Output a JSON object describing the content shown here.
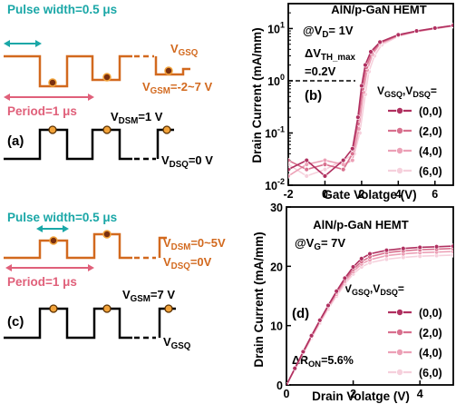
{
  "colors": {
    "teal": "#1aa7a7",
    "orange": "#d2691e",
    "pink_label": "#e0607a",
    "black": "#000000",
    "dot_fill": "#f2a33a",
    "series": [
      "#b03060",
      "#d8708e",
      "#eca0b6",
      "#f6d0dc"
    ]
  },
  "panel_a": {
    "pulse_width": "Pulse width=0.5 μs",
    "vgsq": "V<sub>GSQ</sub>",
    "vgsm": "V<sub>GSM</sub>=-2~7 V",
    "period": "Period=1 μs",
    "vdsm": "V<sub>DSM</sub>=1 V",
    "vdsq": "V<sub>DSQ</sub>=0 V",
    "label": "(a)"
  },
  "panel_c": {
    "pulse_width": "Pulse width=0.5 μs",
    "vdsm": "V<sub>DSM</sub>=0~5V",
    "vdsq": "V<sub>DSQ</sub>=0V",
    "period": "Period=1 μs",
    "vgsm": "V<sub>GSM</sub>=7 V",
    "vgsq": "V<sub>GSQ</sub>",
    "label": "(c)"
  },
  "chart_data": [
    {
      "type": "line",
      "panel": "(b)",
      "device": "AlN/p-GaN HEMT",
      "condition": "@V<sub>D</sub>= 1V",
      "annotation_1": "ΔV<sub>TH_max</sub>",
      "annotation_2": "=0.2V",
      "xlabel": "Gate Volatge (V)",
      "ylabel": "Drain Current (mA/mm)",
      "y_scale": "log",
      "xlim": [
        -2,
        7
      ],
      "ylim": [
        0.01,
        30
      ],
      "xticks": [
        "-2",
        "0",
        "2",
        "4",
        "6"
      ],
      "yticks": [
        "10<tspan dy='-6' font-size='9'>-2</tspan>",
        "10<tspan dy='-6' font-size='9'>-1</tspan>",
        "10<tspan dy='-6' font-size='9'>0</tspan>",
        "10<tspan dy='-6' font-size='9'>1</tspan>"
      ],
      "legend_title": "V<sub>GSQ</sub>,V<sub>DSQ</sub>=",
      "legend_placement": "right",
      "reference_line_y": 1,
      "series": [
        {
          "name": "(0,0)",
          "x": [
            -2,
            -1,
            0,
            1,
            1.5,
            1.8,
            2.0,
            2.2,
            2.5,
            3,
            4,
            5,
            6,
            7
          ],
          "y": [
            0.02,
            0.03,
            0.015,
            0.03,
            0.05,
            0.2,
            0.8,
            2.0,
            3.6,
            5.5,
            7.6,
            9.0,
            10.2,
            11.5
          ]
        },
        {
          "name": "(2,0)",
          "x": [
            -2,
            -1,
            0,
            1,
            1.5,
            1.8,
            2.05,
            2.25,
            2.55,
            3,
            4,
            5,
            6,
            7
          ],
          "y": [
            0.03,
            0.02,
            0.025,
            0.02,
            0.04,
            0.15,
            0.7,
            1.8,
            3.4,
            5.3,
            7.4,
            8.9,
            10.1,
            11.4
          ]
        },
        {
          "name": "(4,0)",
          "x": [
            -2,
            -1,
            0,
            1,
            1.5,
            1.85,
            2.1,
            2.3,
            2.6,
            3,
            4,
            5,
            6,
            7
          ],
          "y": [
            0.015,
            0.025,
            0.03,
            0.025,
            0.03,
            0.12,
            0.6,
            1.6,
            3.2,
            5.1,
            7.3,
            8.8,
            10.0,
            11.3
          ]
        },
        {
          "name": "(6,0)",
          "x": [
            -2,
            -1,
            0,
            1,
            1.6,
            1.9,
            2.2,
            2.4,
            2.7,
            3.1,
            4,
            5,
            6,
            7
          ],
          "y": [
            0.025,
            0.015,
            0.02,
            0.03,
            0.04,
            0.1,
            0.55,
            1.5,
            3.0,
            4.9,
            7.1,
            8.7,
            9.9,
            11.2
          ]
        }
      ]
    },
    {
      "type": "line",
      "panel": "(d)",
      "device": "AlN/p-GaN HEMT",
      "condition": "@V<sub>G</sub>= 7V",
      "annotation": "ΔR<sub>ON</sub>=5.6%",
      "xlabel": "Drain Volatge (V)",
      "ylabel": "Drain Current (mA/mm)",
      "xlim": [
        0,
        5
      ],
      "ylim": [
        0,
        30
      ],
      "xticks": [
        "0",
        "2",
        "4"
      ],
      "yticks": [
        "0",
        "10",
        "20",
        "30"
      ],
      "legend_title": "V<sub>GSQ</sub>,V<sub>DSQ</sub>=",
      "legend_placement": "bottom-right",
      "series": [
        {
          "name": "(0,0)",
          "x": [
            0,
            0.25,
            0.5,
            0.75,
            1.0,
            1.25,
            1.5,
            1.75,
            2.0,
            2.25,
            2.5,
            3.0,
            3.5,
            4.0,
            4.5,
            5.0
          ],
          "y": [
            0,
            2.8,
            5.6,
            8.3,
            10.9,
            13.4,
            15.8,
            18.0,
            19.9,
            21.3,
            22.1,
            22.7,
            23.0,
            23.2,
            23.3,
            23.4
          ]
        },
        {
          "name": "(2,0)",
          "x": [
            0,
            0.25,
            0.5,
            0.75,
            1.0,
            1.25,
            1.5,
            1.75,
            2.0,
            2.25,
            2.5,
            3.0,
            3.5,
            4.0,
            4.5,
            5.0
          ],
          "y": [
            0,
            2.7,
            5.5,
            8.2,
            10.8,
            13.3,
            15.6,
            17.7,
            19.5,
            20.8,
            21.6,
            22.3,
            22.6,
            22.8,
            22.9,
            23.0
          ]
        },
        {
          "name": "(4,0)",
          "x": [
            0,
            0.25,
            0.5,
            0.75,
            1.0,
            1.25,
            1.5,
            1.75,
            2.0,
            2.25,
            2.5,
            3.0,
            3.5,
            4.0,
            4.5,
            5.0
          ],
          "y": [
            0,
            2.7,
            5.4,
            8.1,
            10.6,
            13.1,
            15.3,
            17.4,
            19.1,
            20.4,
            21.1,
            21.8,
            22.1,
            22.3,
            22.4,
            22.5
          ]
        },
        {
          "name": "(6,0)",
          "x": [
            0,
            0.25,
            0.5,
            0.75,
            1.0,
            1.25,
            1.5,
            1.75,
            2.0,
            2.25,
            2.5,
            3.0,
            3.5,
            4.0,
            4.5,
            5.0
          ],
          "y": [
            0,
            2.6,
            5.3,
            7.9,
            10.4,
            12.8,
            15.0,
            17.0,
            18.7,
            19.9,
            20.6,
            21.2,
            21.5,
            21.7,
            21.8,
            21.9
          ]
        }
      ]
    }
  ]
}
